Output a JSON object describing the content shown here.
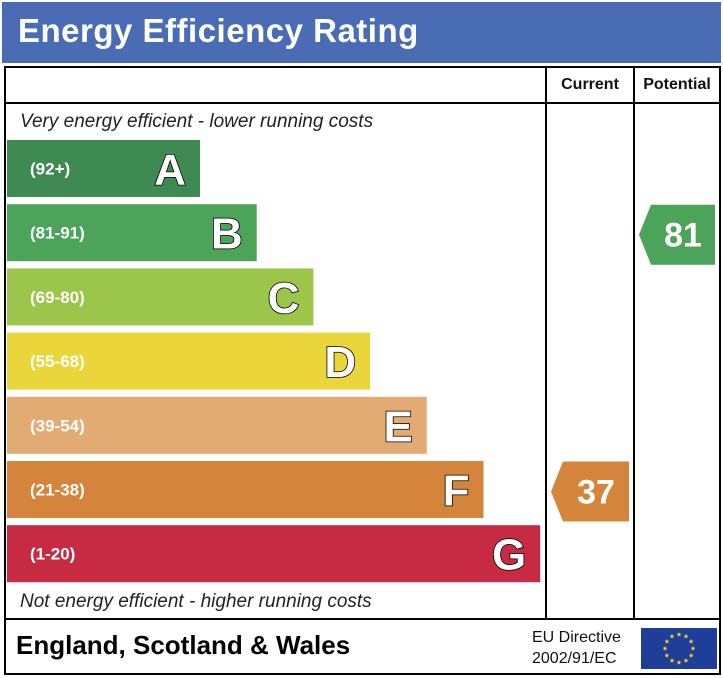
{
  "header": {
    "title": "Energy Efficiency Rating"
  },
  "columns": {
    "current": "Current",
    "potential": "Potential"
  },
  "notes": {
    "top": "Very energy efficient - lower running costs",
    "bottom": "Not energy efficient - higher running costs"
  },
  "footer": {
    "region": "England, Scotland & Wales",
    "directive_line1": "EU Directive",
    "directive_line2": "2002/91/EC"
  },
  "colors": {
    "header_bg": "#4a6cb5",
    "A": "#3e8a52",
    "B": "#4ca35a",
    "C": "#9cc54b",
    "D": "#ead53a",
    "E": "#e2ab73",
    "F": "#d5853b",
    "G": "#c72a43",
    "eu_flag": "#1f3e99",
    "eu_star": "#f3d21c"
  },
  "chart_data": {
    "type": "bar",
    "bands": [
      {
        "letter": "A",
        "range": "(92+)"
      },
      {
        "letter": "B",
        "range": "(81-91)"
      },
      {
        "letter": "C",
        "range": "(69-80)"
      },
      {
        "letter": "D",
        "range": "(55-68)"
      },
      {
        "letter": "E",
        "range": "(39-54)"
      },
      {
        "letter": "F",
        "range": "(21-38)"
      },
      {
        "letter": "G",
        "range": "(1-20)"
      }
    ],
    "current": {
      "value": "37",
      "band": "F"
    },
    "potential": {
      "value": "81",
      "band": "B"
    }
  }
}
